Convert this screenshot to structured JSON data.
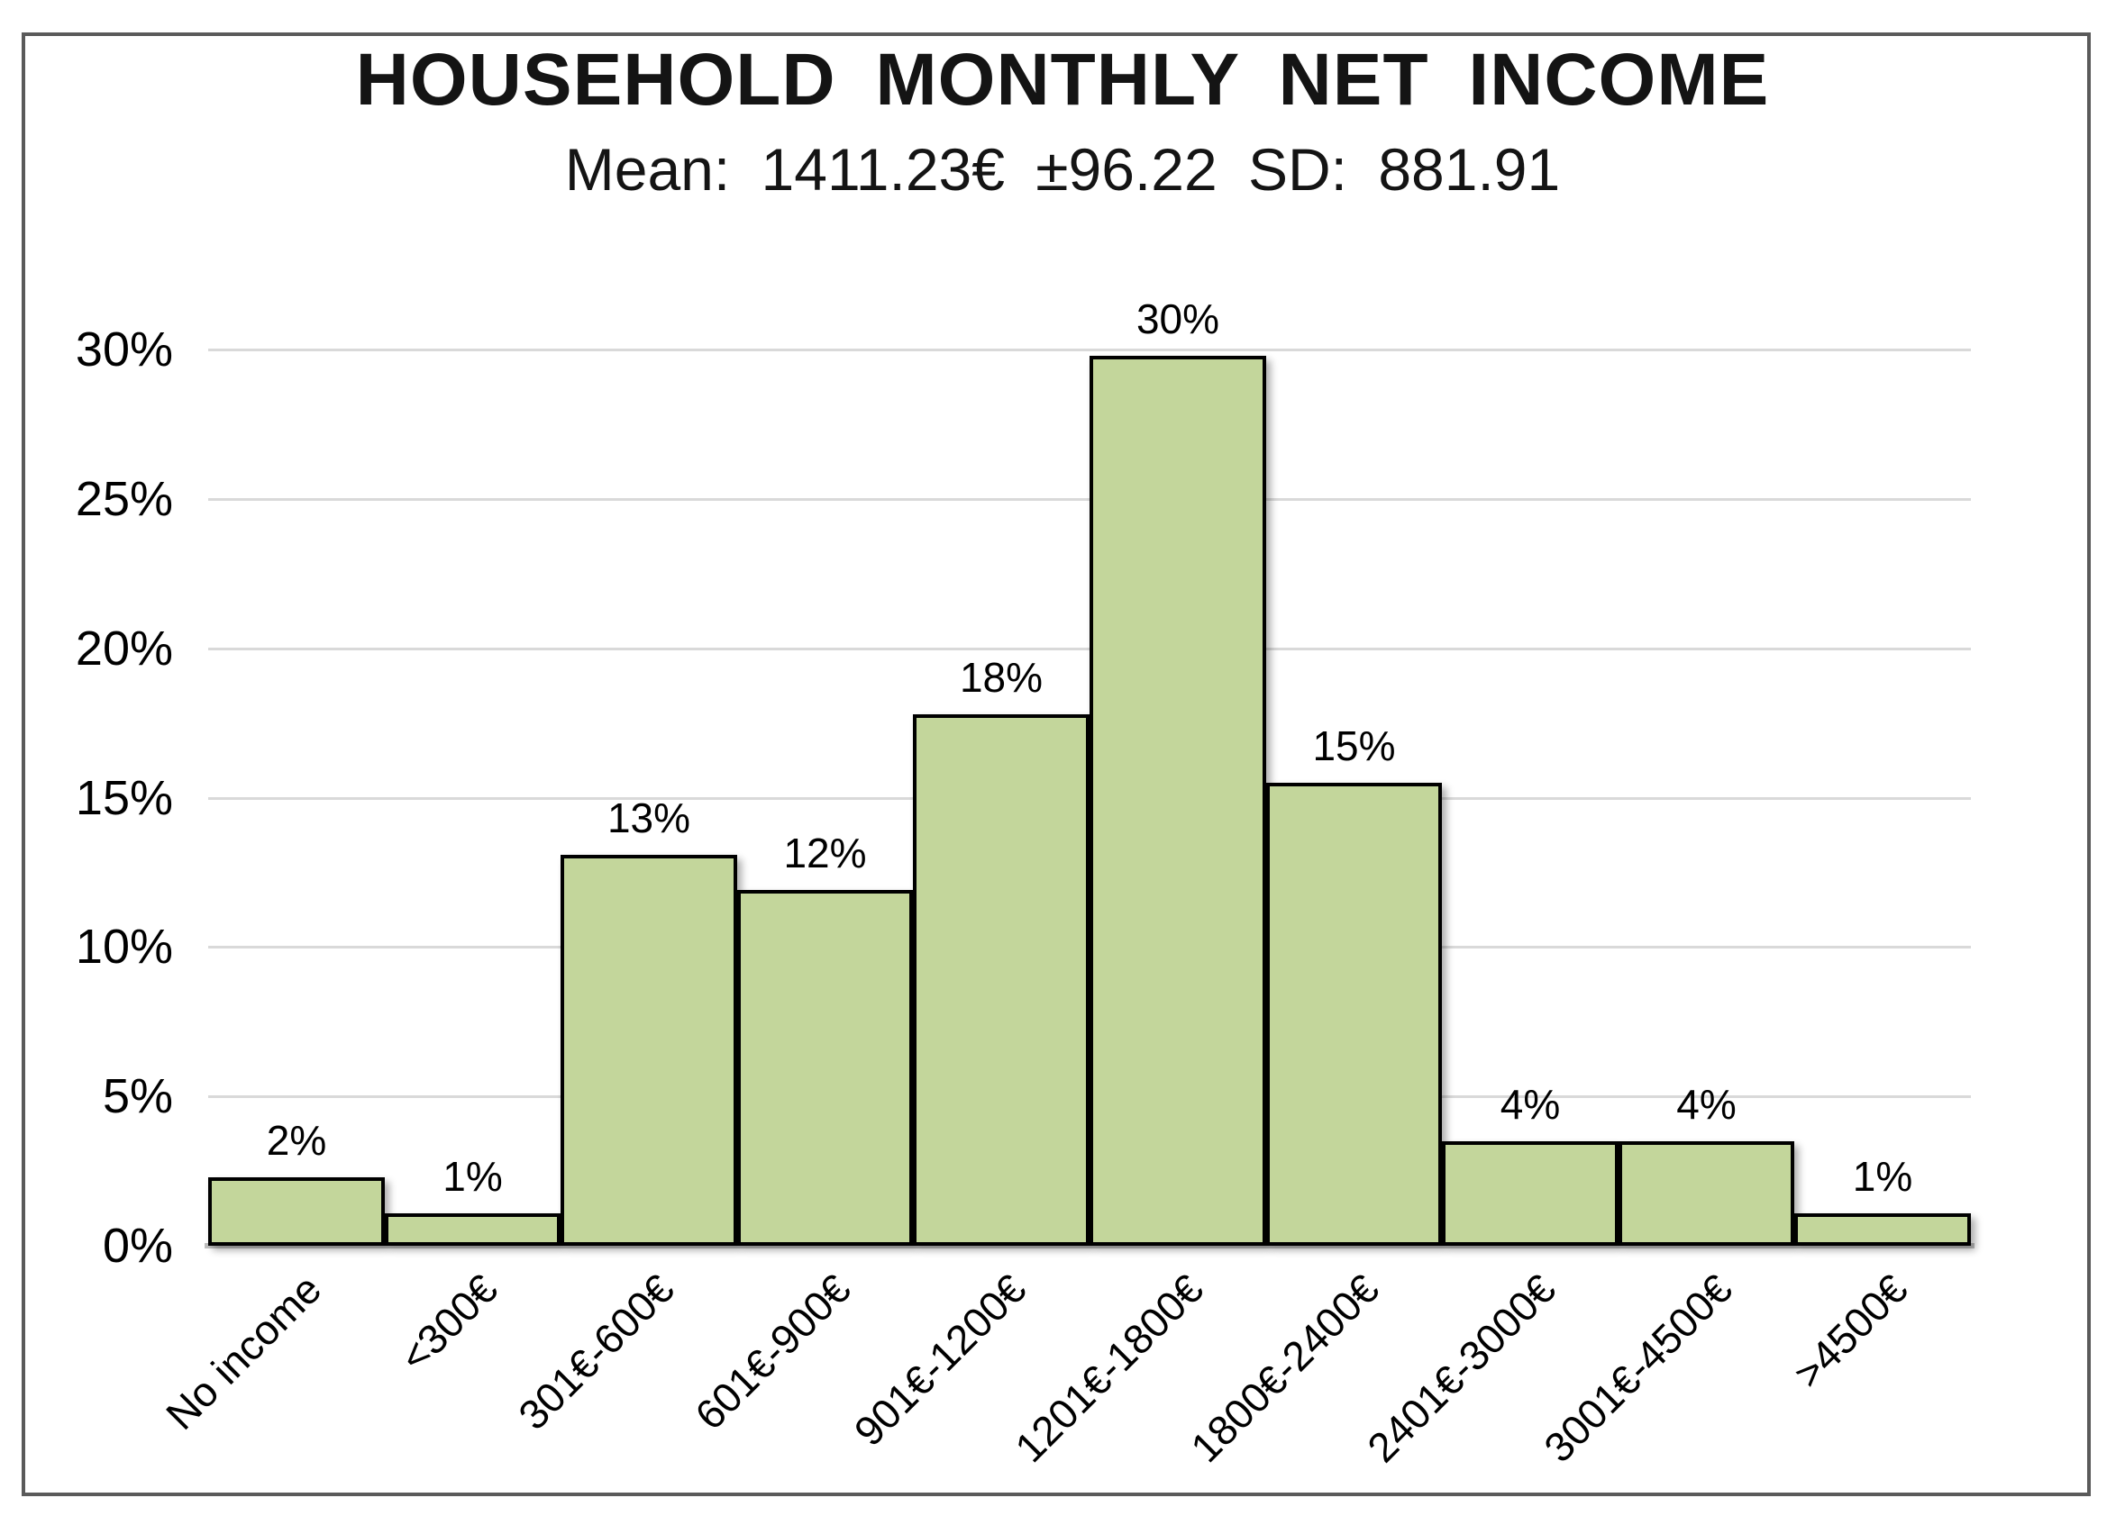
{
  "chart_data": {
    "type": "bar",
    "title": "HOUSEHOLD MONTHLY NET INCOME",
    "subtitle": "Mean: 1411.23€ ±96.22 SD: 881.91",
    "categories": [
      "No income",
      "<300€",
      "301€-600€",
      "601€-900€",
      "901€-1200€",
      "1201€-1800€",
      "1800€-2400€",
      "2401€-3000€",
      "3001€-4500€",
      ">4500€"
    ],
    "values": [
      2,
      1,
      13,
      12,
      18,
      30,
      15,
      4,
      4,
      1
    ],
    "data_labels": [
      "2%",
      "1%",
      "13%",
      "12%",
      "18%",
      "30%",
      "15%",
      "4%",
      "4%",
      "1%"
    ],
    "bar_heights_pct": [
      2.3,
      1.1,
      13.1,
      11.9,
      17.8,
      29.8,
      15.5,
      3.5,
      3.5,
      1.1
    ],
    "xlabel": "",
    "ylabel": "",
    "ylim": [
      0,
      30
    ],
    "ytick_step": 5,
    "yticks": [
      "0%",
      "5%",
      "10%",
      "15%",
      "20%",
      "25%",
      "30%"
    ],
    "grid": true,
    "legend_position": "none",
    "colors": {
      "bar_fill": "#c3d69b",
      "bar_border": "#000000",
      "gridline": "#d9d9d9",
      "axis_line": "#bfbfbf",
      "frame_border": "#5a5a5a",
      "text": "#000000",
      "background": "#ffffff"
    }
  }
}
